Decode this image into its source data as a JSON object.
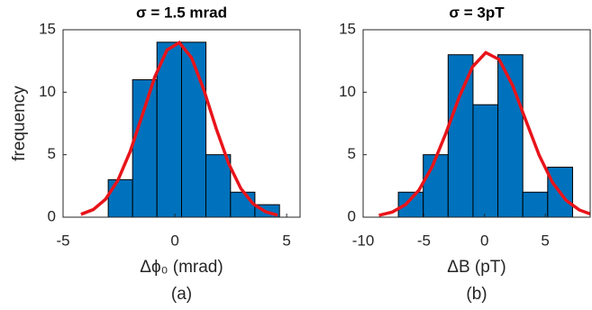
{
  "chart_data": [
    {
      "type": "histogram",
      "title": "σ = 1.5 mrad",
      "xlabel": "Δϕ₀ (mrad)",
      "ylabel": "frequency",
      "caption": "(a)",
      "bins": [
        -2.98,
        -1.89,
        -0.8,
        0.3,
        1.39,
        2.49,
        3.58,
        4.68
      ],
      "counts": [
        3,
        11,
        14,
        14,
        5,
        2,
        1
      ],
      "color": "#0072bd",
      "fit": {
        "x": [
          -4.2,
          -3.65,
          -3.1,
          -2.55,
          -2.0,
          -1.45,
          -0.9,
          -0.35,
          0.2,
          0.75,
          1.3,
          1.85,
          2.4,
          2.95,
          3.5,
          4.05,
          4.6
        ],
        "values": [
          0.23,
          0.61,
          1.44,
          2.94,
          5.25,
          8.21,
          11.21,
          13.38,
          13.97,
          12.75,
          10.17,
          7.09,
          4.32,
          2.3,
          1.07,
          0.44,
          0.16
        ],
        "color": "#e8141a"
      },
      "xlim": [
        -5,
        5.6
      ],
      "xticks": [
        -5,
        0,
        5
      ],
      "ylim": [
        0,
        15
      ],
      "yticks": [
        0,
        5,
        10,
        15
      ]
    },
    {
      "type": "histogram",
      "title": "σ = 3pT",
      "xlabel": "ΔB (pT)",
      "caption": "(b)",
      "bins": [
        -7.1,
        -5.05,
        -3,
        -0.95,
        1.1,
        3.15,
        5.2,
        7.25
      ],
      "counts": [
        2,
        5,
        13,
        9,
        13,
        2,
        4
      ],
      "color": "#0072bd",
      "fit": {
        "x": [
          -8.7,
          -7.6,
          -6.5,
          -5.4,
          -4.3,
          -3.2,
          -2.1,
          -1.0,
          0.1,
          1.2,
          2.3,
          3.4,
          4.5,
          5.6,
          6.7,
          7.8,
          8.7
        ],
        "values": [
          0.15,
          0.41,
          1.01,
          2.17,
          4.07,
          6.68,
          9.58,
          12.02,
          13.17,
          12.62,
          10.57,
          7.74,
          4.95,
          2.77,
          1.36,
          0.58,
          0.26
        ],
        "color": "#e8141a"
      },
      "xlim": [
        -10,
        8.7
      ],
      "xticks": [
        -10,
        -5,
        0,
        5
      ],
      "ylim": [
        0,
        15
      ],
      "yticks": [
        0,
        5,
        10,
        15
      ]
    }
  ]
}
